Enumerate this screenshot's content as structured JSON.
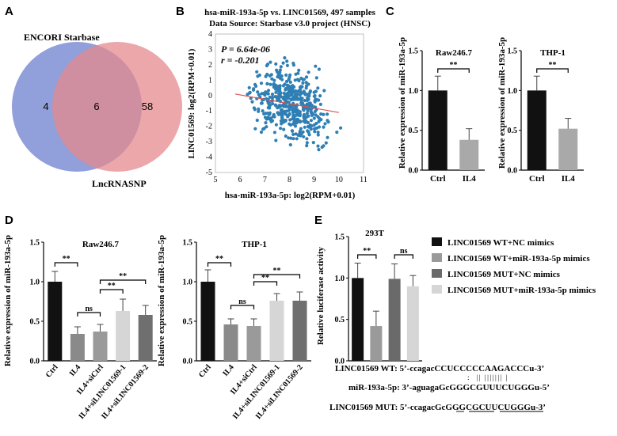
{
  "panels": {
    "A": "A",
    "B": "B",
    "C": "C",
    "D": "D",
    "E": "E"
  },
  "venn": {
    "set1": {
      "label": "ENCORI Starbase",
      "only": "4",
      "color": "#7e8ed4"
    },
    "set2": {
      "label": "LncRNASNP",
      "only": "58",
      "color": "#e48a8e"
    },
    "overlap": "6"
  },
  "scatter": {
    "title1": "hsa-miR-193a-5p vs. LINC01569, 497 samples",
    "title2": "Data Source: Starbase v3.0 project (HNSC)",
    "pval": "P = 6.64e-06",
    "rval": "r = -0.201",
    "xlabel": "hsa-miR-193a-5p: log2(RPM+0.01)",
    "ylabel": "LINC01569: log2(RPM+0.01)",
    "point_color": "#2f7fb4",
    "line_color": "#e05050"
  },
  "axis_labels": {
    "expr": "Relative expression of miR-193a-5p",
    "luc": "Relative luciferase activity"
  },
  "sig": {
    "ss": "**",
    "ns": "ns"
  },
  "legend": [
    {
      "label": "LINC01569 WT+NC mimics",
      "color": "#111111"
    },
    {
      "label": "LINC01569 WT+miR-193a-5p mimics",
      "color": "#9a9a9a"
    },
    {
      "label": "LINC01569 MUT+NC mimics",
      "color": "#6a6a6a"
    },
    {
      "label": "LINC01569 MUT+miR-193a-5p mimics",
      "color": "#d6d6d6"
    }
  ],
  "sequences": {
    "wt": "LINC01569 WT: 5’-ccagacCCUCCCCCAAGACCCu-3’",
    "mir": "miR-193a-5p: 3’-aguagaGcGGGCGUUUCUGGGu-5’",
    "mut": "LINC01569 MUT: 5’-ccagacGcGGGCGCUUCUGGGu-3’"
  },
  "chart_data": [
    {
      "type": "scatter",
      "panel": "B",
      "title": "hsa-miR-193a-5p vs. LINC01569, 497 samples",
      "xlabel": "hsa-miR-193a-5p: log2(RPM+0.01)",
      "ylabel": "LINC01569: log2(RPM+0.01)",
      "xlim": [
        5,
        11
      ],
      "ylim": [
        -5,
        4
      ],
      "xticks": [
        "5",
        "6",
        "7",
        "8",
        "9",
        "10",
        "11"
      ],
      "yticks": [
        "-5",
        "-4",
        "-3",
        "-2",
        "-1",
        "0",
        "1",
        "2",
        "3",
        "4"
      ],
      "fit_line": {
        "x": [
          5.8,
          10
        ],
        "y": [
          0.1,
          -1.1
        ]
      },
      "n_points": 497
    },
    {
      "type": "bar",
      "panel": "C-left",
      "title": "Raw246.7",
      "categories": [
        "Ctrl",
        "IL4"
      ],
      "values": [
        1.0,
        0.38
      ],
      "errors": [
        0.18,
        0.14
      ],
      "colors": [
        "#111111",
        "#a9a9a9"
      ],
      "ylabel": "Relative expression of miR-193a-5p",
      "ylim": [
        0,
        1.5
      ],
      "yticks": [
        "0.0",
        "0.5",
        "1.0",
        "1.5"
      ],
      "brackets": [
        {
          "from": 0,
          "to": 1,
          "label": "**"
        }
      ]
    },
    {
      "type": "bar",
      "panel": "C-right",
      "title": "THP-1",
      "categories": [
        "Ctrl",
        "IL4"
      ],
      "values": [
        1.0,
        0.52
      ],
      "errors": [
        0.18,
        0.13
      ],
      "colors": [
        "#111111",
        "#a9a9a9"
      ],
      "ylabel": "Relative expression of miR-193a-5p",
      "ylim": [
        0,
        1.5
      ],
      "yticks": [
        "0.0",
        "0.5",
        "1.0",
        "1.5"
      ],
      "brackets": [
        {
          "from": 0,
          "to": 1,
          "label": "**"
        }
      ]
    },
    {
      "type": "bar",
      "panel": "D-left",
      "title": "Raw246.7",
      "categories": [
        "Ctrl",
        "IL4",
        "IL4+siCtrl",
        "IL4+siLINC01569-1",
        "IL4+siLINC01569-2"
      ],
      "values": [
        1.0,
        0.34,
        0.37,
        0.63,
        0.58
      ],
      "errors": [
        0.13,
        0.09,
        0.09,
        0.15,
        0.12
      ],
      "colors": [
        "#111111",
        "#8a8a8a",
        "#9a9a9a",
        "#d6d6d6",
        "#6f6f6f"
      ],
      "ylabel": "Relative expression of miR-193a-5p",
      "ylim": [
        0,
        1.5
      ],
      "yticks": [
        "0.0",
        "0.5",
        "1.0",
        "1.5"
      ],
      "brackets": [
        {
          "from": 0,
          "to": 1,
          "label": "**"
        },
        {
          "from": 1,
          "to": 2,
          "label": "ns"
        },
        {
          "from": 2,
          "to": 3,
          "label": "**"
        },
        {
          "from": 2,
          "to": 4,
          "label": "**"
        }
      ]
    },
    {
      "type": "bar",
      "panel": "D-right",
      "title": "THP-1",
      "categories": [
        "Ctrl",
        "IL4",
        "IL4+siCtrl",
        "IL4+siLINC01569-1",
        "IL4+siLINC01569-2"
      ],
      "values": [
        1.0,
        0.46,
        0.44,
        0.76,
        0.76
      ],
      "errors": [
        0.15,
        0.07,
        0.09,
        0.09,
        0.11
      ],
      "colors": [
        "#111111",
        "#8a8a8a",
        "#9a9a9a",
        "#d6d6d6",
        "#6f6f6f"
      ],
      "ylabel": "Relative expression of miR-193a-5p",
      "ylim": [
        0,
        1.5
      ],
      "yticks": [
        "0.0",
        "0.5",
        "1.0",
        "1.5"
      ],
      "brackets": [
        {
          "from": 0,
          "to": 1,
          "label": "**"
        },
        {
          "from": 1,
          "to": 2,
          "label": "ns"
        },
        {
          "from": 2,
          "to": 3,
          "label": "**"
        },
        {
          "from": 2,
          "to": 4,
          "label": "**"
        }
      ]
    },
    {
      "type": "bar",
      "panel": "E",
      "title": "293T",
      "categories": [
        "LINC01569 WT+NC mimics",
        "LINC01569 WT+miR-193a-5p mimics",
        "LINC01569 MUT+NC mimics",
        "LINC01569 MUT+miR-193a-5p mimics"
      ],
      "values": [
        1.0,
        0.42,
        0.99,
        0.9
      ],
      "errors": [
        0.18,
        0.18,
        0.18,
        0.13
      ],
      "colors": [
        "#111111",
        "#9a9a9a",
        "#6a6a6a",
        "#d6d6d6"
      ],
      "ylabel": "Relative luciferase activity",
      "ylim": [
        0,
        1.5
      ],
      "yticks": [
        "0.0",
        "0.5",
        "1.0",
        "1.5"
      ],
      "brackets": [
        {
          "from": 0,
          "to": 1,
          "label": "**"
        },
        {
          "from": 2,
          "to": 3,
          "label": "ns"
        }
      ]
    }
  ]
}
